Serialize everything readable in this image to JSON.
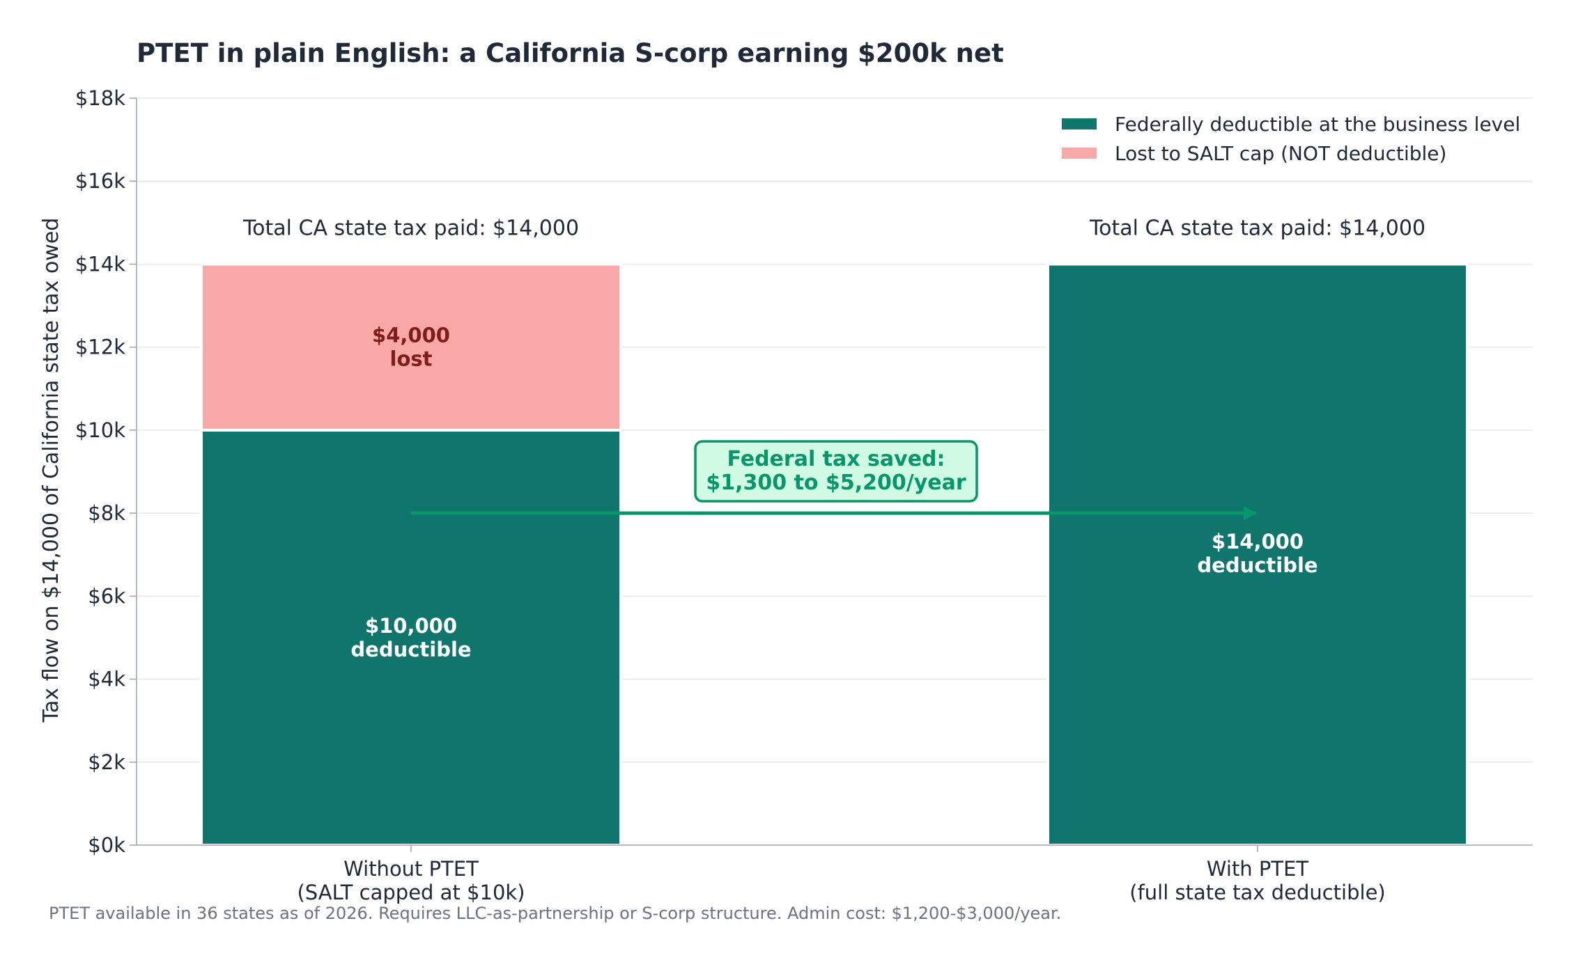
{
  "colors": {
    "deductible": "#10766d",
    "lost": "#f9a8a8",
    "lost_text": "#7f1d1d",
    "arrow": "#059669",
    "callout_fill": "#d1fae5",
    "grid": "#e5e7eb"
  },
  "chart_data": {
    "type": "bar",
    "stacked": true,
    "title": "PTET in plain English: a California S-corp earning $200k net",
    "ylabel": "Tax flow on $14,000 of California state tax owed",
    "xlabel": "",
    "ylim": [
      0,
      18000
    ],
    "yticks": [
      0,
      2000,
      4000,
      6000,
      8000,
      10000,
      12000,
      14000,
      16000,
      18000
    ],
    "ytick_labels": [
      "$0k",
      "$2k",
      "$4k",
      "$6k",
      "$8k",
      "$10k",
      "$12k",
      "$14k",
      "$16k",
      "$18k"
    ],
    "grid": true,
    "legend_position": "top-right",
    "categories": [
      [
        "Without PTET",
        "(SALT capped at $10k)"
      ],
      [
        "With PTET",
        "(full state tax deductible)"
      ]
    ],
    "series": [
      {
        "name": "Federally deductible at the business level",
        "values": [
          10000,
          14000
        ],
        "color": "#10766d"
      },
      {
        "name": "Lost to SALT cap (NOT deductible)",
        "values": [
          4000,
          0
        ],
        "color": "#f9a8a8"
      }
    ],
    "bar_labels": [
      {
        "series": 0,
        "bar": 0,
        "lines": [
          "$10,000",
          "deductible"
        ]
      },
      {
        "series": 0,
        "bar": 1,
        "lines": [
          "$14,000",
          "deductible"
        ]
      },
      {
        "series": 1,
        "bar": 0,
        "lines": [
          "$4,000",
          "lost"
        ]
      }
    ],
    "totals": [
      "Total CA state tax paid: $14,000",
      "Total CA state tax paid: $14,000"
    ],
    "annotation": {
      "lines": [
        "Federal tax saved:",
        "$1,300 to $5,200/year"
      ],
      "arrow_y": 8000,
      "from_bar": 0,
      "to_bar": 1
    },
    "footnote": "PTET available in 36 states as of 2026. Requires LLC-as-partnership or S-corp structure. Admin cost: $1,200-$3,000/year."
  }
}
